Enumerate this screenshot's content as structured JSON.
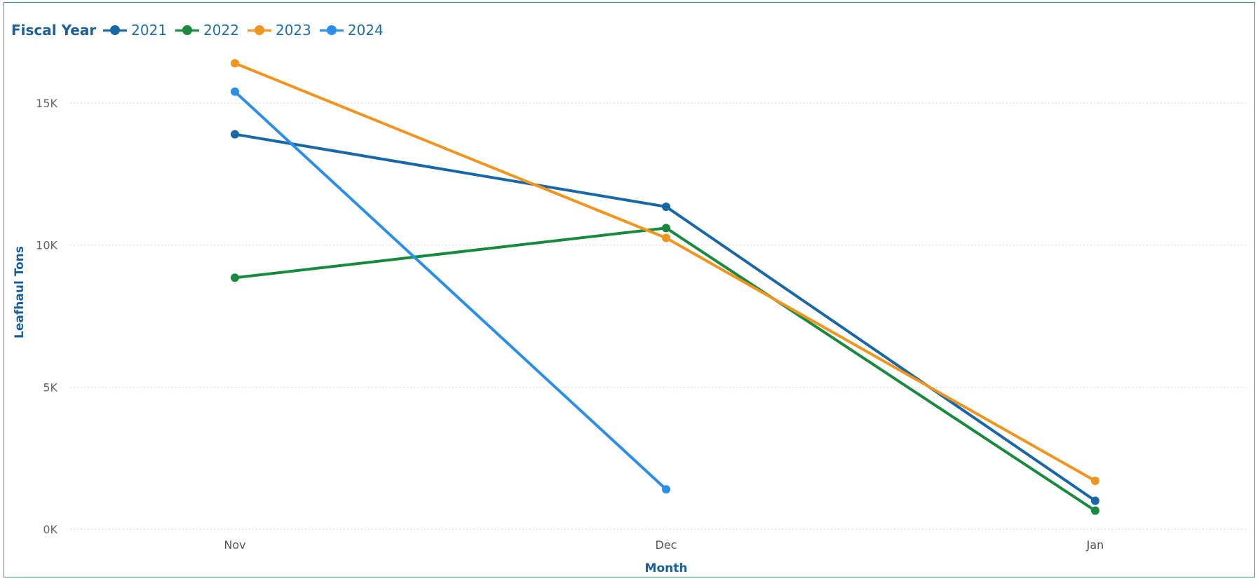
{
  "chart_data": {
    "type": "line",
    "legend_title": "Fiscal Year",
    "legend_position": "top-left",
    "categories": [
      "Nov",
      "Dec",
      "Jan"
    ],
    "xlabel": "Month",
    "ylabel": "Leafhaul Tons",
    "ylim": [
      0,
      17000
    ],
    "yticks": [
      0,
      5000,
      10000,
      15000
    ],
    "ytick_labels": [
      "0K",
      "5K",
      "10K",
      "15K"
    ],
    "grid": true,
    "series": [
      {
        "name": "2021",
        "color": "#1868a8",
        "values": [
          13900,
          11350,
          1000
        ]
      },
      {
        "name": "2022",
        "color": "#178a3e",
        "values": [
          8850,
          10600,
          650
        ]
      },
      {
        "name": "2023",
        "color": "#f2951f",
        "values": [
          16400,
          10250,
          1700
        ]
      },
      {
        "name": "2024",
        "color": "#2b8ee8",
        "values": [
          15400,
          1400,
          null
        ]
      }
    ]
  }
}
